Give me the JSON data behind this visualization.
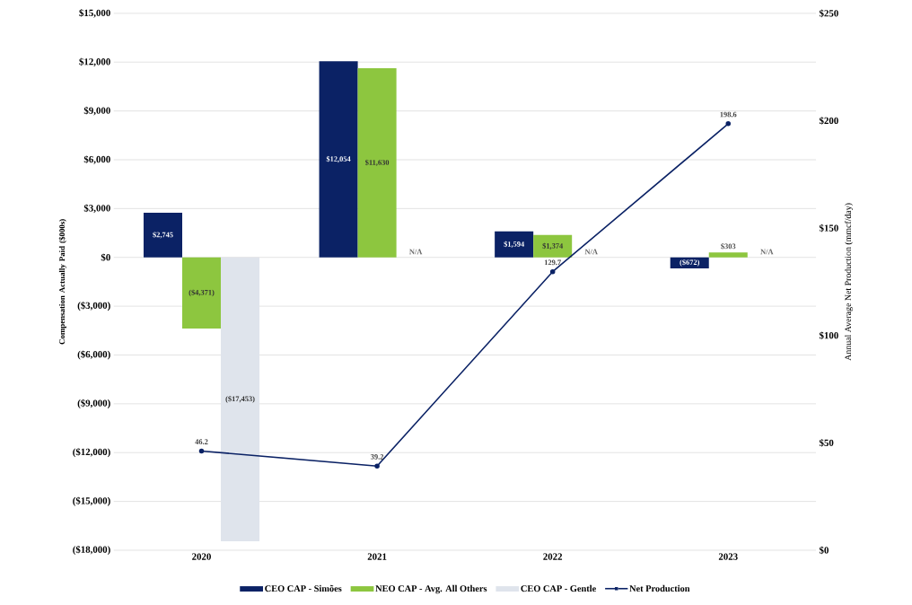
{
  "chart_data": {
    "type": "bar",
    "categories": [
      "2020",
      "2021",
      "2022",
      "2023"
    ],
    "ylabel": "Compensation Actually Paid ($000s)",
    "y2label": "Annual Average Net Production (mmcf/day)",
    "ylim": [
      -18000,
      15000
    ],
    "yticks": [
      {
        "value": -18000,
        "label": "($18,000)"
      },
      {
        "value": -15000,
        "label": "($15,000)"
      },
      {
        "value": -12000,
        "label": "($12,000)"
      },
      {
        "value": -9000,
        "label": "($9,000)"
      },
      {
        "value": -6000,
        "label": "($6,000)"
      },
      {
        "value": -3000,
        "label": "($3,000)"
      },
      {
        "value": 0,
        "label": "$0"
      },
      {
        "value": 3000,
        "label": "$3,000"
      },
      {
        "value": 6000,
        "label": "$6,000"
      },
      {
        "value": 9000,
        "label": "$9,000"
      },
      {
        "value": 12000,
        "label": "$12,000"
      },
      {
        "value": 15000,
        "label": "$15,000"
      }
    ],
    "y2lim": [
      0,
      250
    ],
    "y2ticks": [
      {
        "value": 0,
        "label": "$0"
      },
      {
        "value": 50,
        "label": "$50"
      },
      {
        "value": 100,
        "label": "$100"
      },
      {
        "value": 150,
        "label": "$150"
      },
      {
        "value": 200,
        "label": "$200"
      },
      {
        "value": 250,
        "label": "$250"
      }
    ],
    "grid": "y",
    "legend": "bottom",
    "series": [
      {
        "name": "CEO CAP - Simões",
        "color": "#0b2265",
        "values": [
          2745,
          12054,
          1594,
          -672
        ],
        "value_labels": [
          "$2,745",
          "$12,054",
          "$1,594",
          "($672)"
        ]
      },
      {
        "name": "NEO CAP - Avg. All Others",
        "color": "#8dc63f",
        "values": [
          -4371,
          11630,
          1374,
          303
        ],
        "value_labels": [
          "($4,371)",
          "$11,630",
          "$1,374",
          "$303"
        ]
      },
      {
        "name": "CEO CAP - Gentle",
        "color": "#dfe4ec",
        "values": [
          -17453,
          null,
          null,
          null
        ],
        "value_labels": [
          "($17,453)",
          "N/A",
          "N/A",
          "N/A"
        ]
      },
      {
        "name": "Net Production",
        "type": "line",
        "axis": "y2",
        "marker": "circle",
        "color": "#0b2265",
        "values": [
          46.2,
          39.2,
          129.7,
          198.6
        ],
        "value_labels": [
          "46.2",
          "39.2",
          "129.7",
          "198.6"
        ]
      }
    ]
  }
}
